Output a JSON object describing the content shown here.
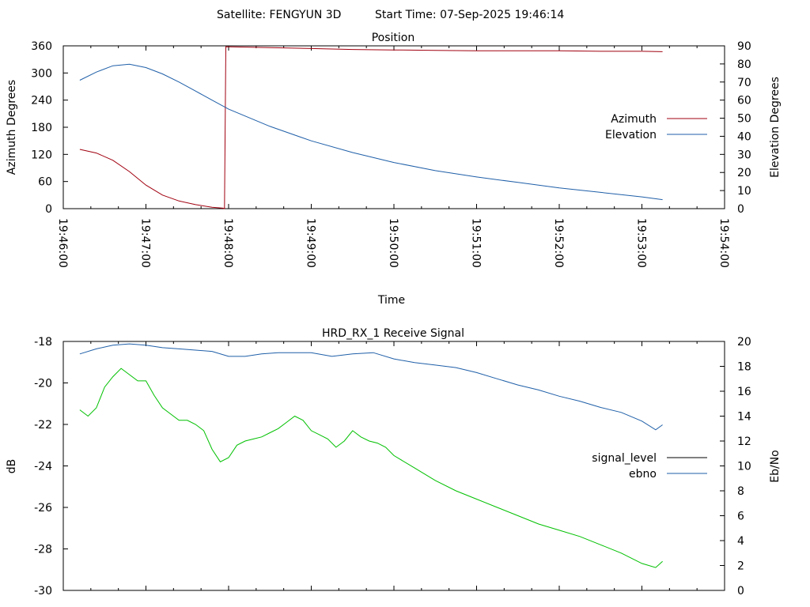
{
  "header": {
    "satellite": "Satellite: FENGYUN 3D",
    "start_time": "Start Time: 07-Sep-2025 19:46:14"
  },
  "chart_data": [
    {
      "type": "line",
      "title": "Position",
      "xlabel": "Time",
      "ylabel": "Azimuth Degrees",
      "y2label": "Elevation Degrees",
      "xlim": [
        "19:46:00",
        "19:54:00"
      ],
      "ylim": [
        0,
        360
      ],
      "y2lim": [
        0,
        90
      ],
      "x_ticks": [
        "19:46:00",
        "19:47:00",
        "19:48:00",
        "19:49:00",
        "19:50:00",
        "19:51:00",
        "19:52:00",
        "19:53:00",
        "19:54:00"
      ],
      "y_ticks": [
        "0",
        "60",
        "120",
        "180",
        "240",
        "300",
        "360"
      ],
      "y2_ticks": [
        "0",
        "10",
        "20",
        "30",
        "40",
        "50",
        "60",
        "70",
        "80",
        "90"
      ],
      "legend_position": "right-middle",
      "grid": false,
      "series": [
        {
          "name": "Azimuth",
          "axis": "y",
          "color": "#a0000f",
          "x": [
            "19:46:12",
            "19:46:24",
            "19:46:36",
            "19:46:48",
            "19:47:00",
            "19:47:12",
            "19:47:24",
            "19:47:36",
            "19:47:48",
            "19:47:56",
            "19:47:57",
            "19:47:58",
            "19:48:30",
            "19:49:00",
            "19:49:30",
            "19:50:00",
            "19:50:30",
            "19:51:00",
            "19:51:30",
            "19:52:00",
            "19:52:30",
            "19:53:00",
            "19:53:15"
          ],
          "values": [
            131,
            123,
            107,
            82,
            52,
            30,
            17,
            9,
            3,
            1,
            0,
            358,
            356,
            354,
            352,
            351,
            350,
            349,
            349,
            349,
            348,
            348,
            347
          ]
        },
        {
          "name": "Elevation",
          "axis": "y2",
          "color": "#1f5fa8",
          "x": [
            "19:46:12",
            "19:46:24",
            "19:46:36",
            "19:46:48",
            "19:47:00",
            "19:47:12",
            "19:47:24",
            "19:47:36",
            "19:47:48",
            "19:48:00",
            "19:48:30",
            "19:49:00",
            "19:49:30",
            "19:50:00",
            "19:50:30",
            "19:51:00",
            "19:51:30",
            "19:52:00",
            "19:52:30",
            "19:53:00",
            "19:53:15"
          ],
          "values": [
            71,
            75.5,
            79,
            79.8,
            78,
            74.5,
            70,
            65,
            60,
            55,
            45.5,
            37.5,
            31,
            25.5,
            21,
            17.5,
            14.5,
            11.5,
            9,
            6.5,
            5
          ]
        }
      ]
    },
    {
      "type": "line",
      "title": "HRD_RX_1 Receive Signal",
      "xlabel": "",
      "ylabel": "dB",
      "y2label": "Eb/No",
      "xlim": [
        "19:46:00",
        "19:54:00"
      ],
      "ylim": [
        -30,
        -18
      ],
      "y2lim": [
        0,
        20
      ],
      "y_ticks": [
        "-30",
        "-28",
        "-26",
        "-24",
        "-22",
        "-20",
        "-18"
      ],
      "y2_ticks": [
        "0",
        "2",
        "4",
        "6",
        "8",
        "10",
        "12",
        "14",
        "16",
        "18",
        "20"
      ],
      "legend_position": "right-middle",
      "grid": false,
      "series": [
        {
          "name": "signal_level",
          "axis": "y",
          "color": "#00c000",
          "legend_color": "#000000",
          "x": [
            "19:46:12",
            "19:46:18",
            "19:46:24",
            "19:46:30",
            "19:46:36",
            "19:46:42",
            "19:46:48",
            "19:46:54",
            "19:47:00",
            "19:47:06",
            "19:47:12",
            "19:47:18",
            "19:47:24",
            "19:47:30",
            "19:47:36",
            "19:47:42",
            "19:47:48",
            "19:47:54",
            "19:48:00",
            "19:48:06",
            "19:48:12",
            "19:48:18",
            "19:48:24",
            "19:48:30",
            "19:48:36",
            "19:48:42",
            "19:48:48",
            "19:48:54",
            "19:49:00",
            "19:49:06",
            "19:49:12",
            "19:49:18",
            "19:49:24",
            "19:49:30",
            "19:49:36",
            "19:49:42",
            "19:49:48",
            "19:49:54",
            "19:50:00",
            "19:50:15",
            "19:50:30",
            "19:50:45",
            "19:51:00",
            "19:51:15",
            "19:51:30",
            "19:51:45",
            "19:52:00",
            "19:52:15",
            "19:52:30",
            "19:52:45",
            "19:53:00",
            "19:53:10",
            "19:53:15"
          ],
          "values": [
            -21.3,
            -21.6,
            -21.2,
            -20.2,
            -19.7,
            -19.3,
            -19.6,
            -19.9,
            -19.9,
            -20.6,
            -21.2,
            -21.5,
            -21.8,
            -21.8,
            -22,
            -22.3,
            -23.2,
            -23.8,
            -23.6,
            -23,
            -22.8,
            -22.7,
            -22.6,
            -22.4,
            -22.2,
            -21.9,
            -21.6,
            -21.8,
            -22.3,
            -22.5,
            -22.7,
            -23.1,
            -22.8,
            -22.3,
            -22.6,
            -22.8,
            -22.9,
            -23.1,
            -23.5,
            -24.1,
            -24.7,
            -25.2,
            -25.6,
            -26,
            -26.4,
            -26.8,
            -27.1,
            -27.4,
            -27.8,
            -28.2,
            -28.7,
            -28.9,
            -28.6
          ]
        },
        {
          "name": "ebno",
          "axis": "y2",
          "color": "#1f5fa8",
          "x": [
            "19:46:12",
            "19:46:24",
            "19:46:36",
            "19:46:48",
            "19:47:00",
            "19:47:12",
            "19:47:24",
            "19:47:36",
            "19:47:48",
            "19:48:00",
            "19:48:12",
            "19:48:24",
            "19:48:36",
            "19:48:48",
            "19:49:00",
            "19:49:15",
            "19:49:30",
            "19:49:45",
            "19:50:00",
            "19:50:15",
            "19:50:30",
            "19:50:45",
            "19:51:00",
            "19:51:15",
            "19:51:30",
            "19:51:45",
            "19:52:00",
            "19:52:15",
            "19:52:30",
            "19:52:45",
            "19:53:00",
            "19:53:10",
            "19:53:15"
          ],
          "values": [
            19,
            19.4,
            19.7,
            19.8,
            19.7,
            19.5,
            19.4,
            19.3,
            19.2,
            18.8,
            18.8,
            19,
            19.1,
            19.1,
            19.1,
            18.8,
            19,
            19.1,
            18.6,
            18.3,
            18.1,
            17.9,
            17.5,
            17.0,
            16.5,
            16.1,
            15.6,
            15.2,
            14.7,
            14.3,
            13.6,
            12.9,
            13.3
          ]
        }
      ]
    }
  ]
}
